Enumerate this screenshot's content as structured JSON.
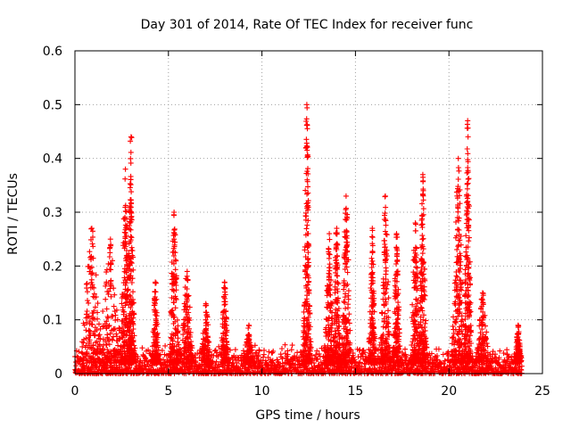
{
  "chart_data": {
    "type": "scatter",
    "title": "Day 301 of 2014, Rate Of TEC Index for receiver func",
    "xlabel": "GPS time / hours",
    "ylabel": "ROTI / TECUs",
    "xlim": [
      0,
      25
    ],
    "ylim": [
      0,
      0.6
    ],
    "xticks": [
      0,
      5,
      10,
      15,
      20,
      25
    ],
    "xtick_labels": [
      "0",
      "5",
      "10",
      "15",
      "20",
      "25"
    ],
    "yticks": [
      0,
      0.1,
      0.2,
      0.3,
      0.4,
      0.5,
      0.6
    ],
    "ytick_labels": [
      "0",
      "0.1",
      "0.2",
      "0.3",
      "0.4",
      "0.5",
      "0.6"
    ],
    "grid": true,
    "marker": "+",
    "color": "#ff0000",
    "data_extent_hours": [
      0,
      23.9
    ],
    "baseline_range": [
      0.0,
      0.04
    ],
    "bursts": [
      {
        "center": 0.9,
        "width": 0.9,
        "peak": 0.27
      },
      {
        "center": 1.9,
        "width": 1.0,
        "peak": 0.25
      },
      {
        "center": 2.7,
        "width": 0.4,
        "peak": 0.38
      },
      {
        "center": 3.0,
        "width": 0.3,
        "peak": 0.44
      },
      {
        "center": 4.3,
        "width": 0.3,
        "peak": 0.17
      },
      {
        "center": 5.3,
        "width": 0.4,
        "peak": 0.3
      },
      {
        "center": 6.0,
        "width": 0.5,
        "peak": 0.19
      },
      {
        "center": 7.0,
        "width": 0.4,
        "peak": 0.13
      },
      {
        "center": 8.0,
        "width": 0.3,
        "peak": 0.17
      },
      {
        "center": 9.3,
        "width": 0.4,
        "peak": 0.09
      },
      {
        "center": 12.4,
        "width": 0.3,
        "peak": 0.5
      },
      {
        "center": 13.6,
        "width": 0.4,
        "peak": 0.26
      },
      {
        "center": 14.0,
        "width": 0.3,
        "peak": 0.27
      },
      {
        "center": 14.5,
        "width": 0.4,
        "peak": 0.33
      },
      {
        "center": 15.9,
        "width": 0.3,
        "peak": 0.27
      },
      {
        "center": 16.6,
        "width": 0.4,
        "peak": 0.33
      },
      {
        "center": 17.2,
        "width": 0.3,
        "peak": 0.26
      },
      {
        "center": 18.2,
        "width": 0.4,
        "peak": 0.28
      },
      {
        "center": 18.6,
        "width": 0.3,
        "peak": 0.37
      },
      {
        "center": 20.5,
        "width": 0.5,
        "peak": 0.4
      },
      {
        "center": 21.0,
        "width": 0.3,
        "peak": 0.47
      },
      {
        "center": 21.8,
        "width": 0.5,
        "peak": 0.15
      },
      {
        "center": 23.7,
        "width": 0.3,
        "peak": 0.09
      }
    ]
  }
}
